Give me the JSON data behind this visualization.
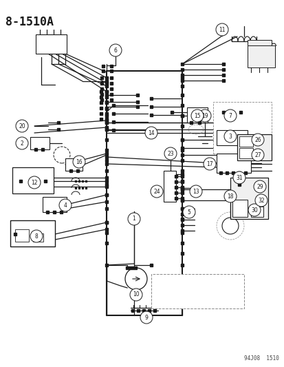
{
  "title": "8-1510A",
  "watermark": "94J08  1510",
  "bg_color": "#ffffff",
  "lc": "#1a1a1a",
  "gray": "#888888",
  "title_fs": 12,
  "wm_fs": 5.5,
  "circle_r": 0.018,
  "circle_fs": 5.5,
  "figsize": [
    4.14,
    5.33
  ],
  "dpi": 100
}
